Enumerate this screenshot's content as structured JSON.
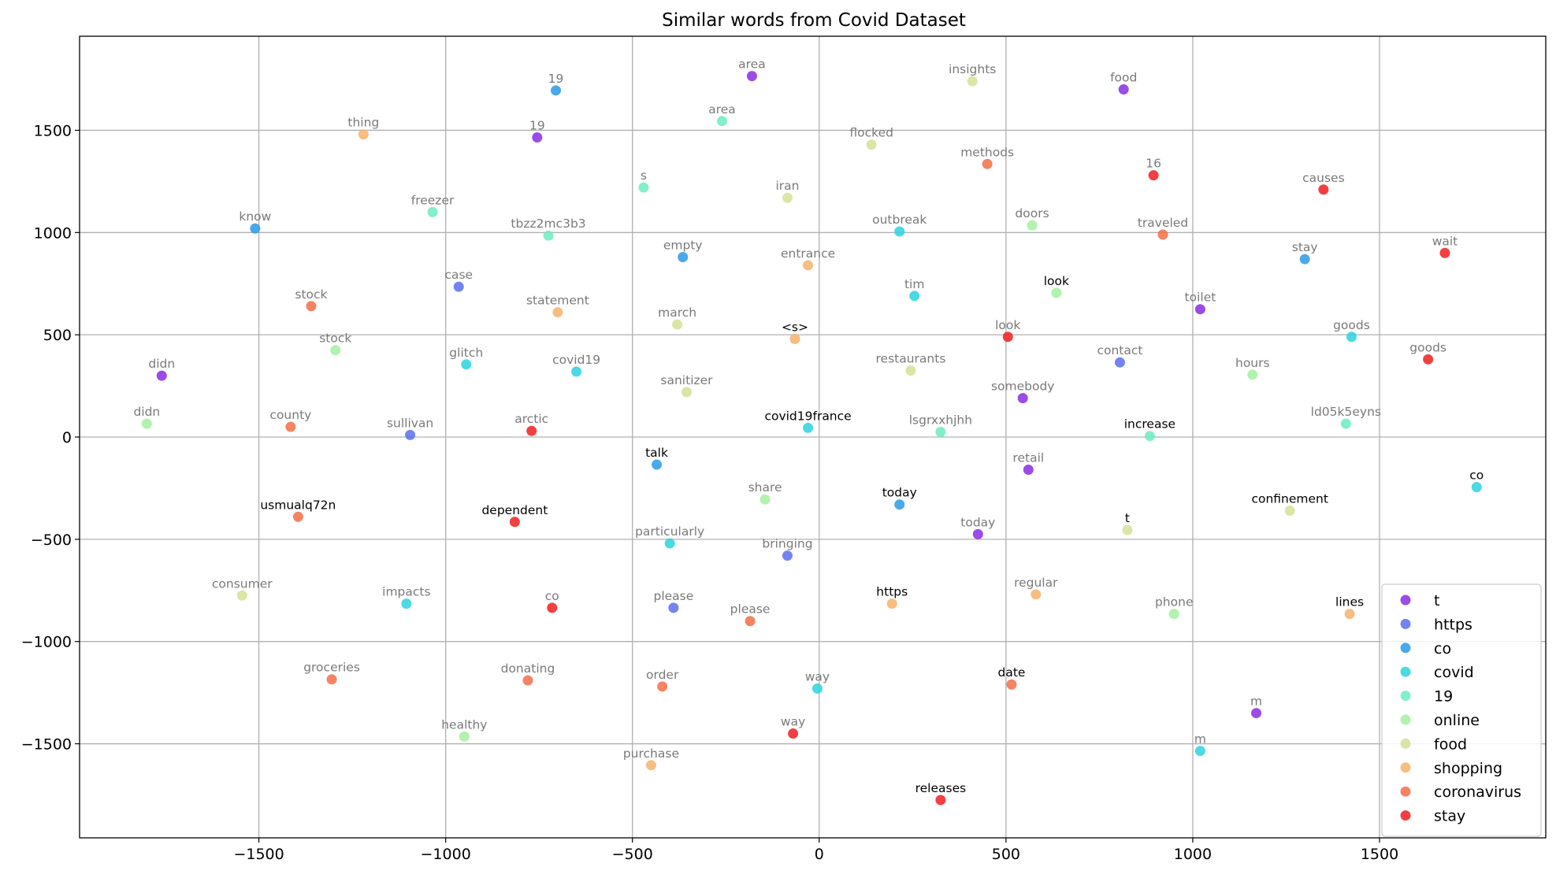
{
  "chart_data": {
    "type": "scatter",
    "title": "Similar words from Covid Dataset",
    "xlabel": "",
    "ylabel": "",
    "xlim": [
      -1980,
      1945
    ],
    "ylim": [
      -1960,
      1960
    ],
    "x_ticks": [
      -1500,
      -1000,
      -500,
      0,
      500,
      1000,
      1500
    ],
    "y_ticks": [
      -1500,
      -1000,
      -500,
      0,
      500,
      1000,
      1500
    ],
    "grid": true,
    "legend_position": "lower-right",
    "series": [
      {
        "name": "t",
        "color": "#8a2be2",
        "points": [
          {
            "x": -1760,
            "y": 300,
            "label": "didn",
            "dark": false
          },
          {
            "x": -755,
            "y": 1465,
            "label": "19",
            "dark": false
          },
          {
            "x": -180,
            "y": 1765,
            "label": "area",
            "dark": false
          },
          {
            "x": 815,
            "y": 1700,
            "label": "food",
            "dark": false
          },
          {
            "x": 1020,
            "y": 625,
            "label": "toilet",
            "dark": false
          },
          {
            "x": 545,
            "y": 190,
            "label": "somebody",
            "dark": false
          },
          {
            "x": 560,
            "y": -160,
            "label": "retail",
            "dark": false
          },
          {
            "x": 425,
            "y": -475,
            "label": "today",
            "dark": false
          },
          {
            "x": 1170,
            "y": -1350,
            "label": "m",
            "dark": false
          }
        ]
      },
      {
        "name": "https",
        "color": "#5a6ef0",
        "points": [
          {
            "x": -965,
            "y": 735,
            "label": "case",
            "dark": false
          },
          {
            "x": -1095,
            "y": 10,
            "label": "sullivan",
            "dark": false
          },
          {
            "x": -85,
            "y": -580,
            "label": "bringing",
            "dark": false
          },
          {
            "x": -390,
            "y": -835,
            "label": "please",
            "dark": false
          },
          {
            "x": 805,
            "y": 365,
            "label": "contact",
            "dark": false
          }
        ]
      },
      {
        "name": "co",
        "color": "#2a9ae6",
        "points": [
          {
            "x": -1510,
            "y": 1020,
            "label": "know",
            "dark": false
          },
          {
            "x": -705,
            "y": 1695,
            "label": "19",
            "dark": false
          },
          {
            "x": -365,
            "y": 880,
            "label": "empty",
            "dark": false
          },
          {
            "x": 1300,
            "y": 870,
            "label": "stay",
            "dark": false
          },
          {
            "x": -435,
            "y": -135,
            "label": "talk",
            "dark": true
          },
          {
            "x": 215,
            "y": -330,
            "label": "today",
            "dark": true
          }
        ]
      },
      {
        "name": "covid",
        "color": "#2ad4de",
        "points": [
          {
            "x": -945,
            "y": 355,
            "label": "glitch",
            "dark": false
          },
          {
            "x": -650,
            "y": 320,
            "label": "covid19",
            "dark": false
          },
          {
            "x": 215,
            "y": 1005,
            "label": "outbreak",
            "dark": false
          },
          {
            "x": 255,
            "y": 690,
            "label": "tim",
            "dark": false
          },
          {
            "x": -30,
            "y": 45,
            "label": "covid19france",
            "dark": true
          },
          {
            "x": 1425,
            "y": 490,
            "label": "goods",
            "dark": false
          },
          {
            "x": 1760,
            "y": -245,
            "label": "co",
            "dark": true
          },
          {
            "x": -1105,
            "y": -815,
            "label": "impacts",
            "dark": false
          },
          {
            "x": -400,
            "y": -520,
            "label": "particularly",
            "dark": false
          },
          {
            "x": -5,
            "y": -1230,
            "label": "way",
            "dark": false
          },
          {
            "x": 1020,
            "y": -1535,
            "label": "m",
            "dark": false
          }
        ]
      },
      {
        "name": "19",
        "color": "#6cecc0",
        "points": [
          {
            "x": -1035,
            "y": 1100,
            "label": "freezer",
            "dark": false
          },
          {
            "x": -725,
            "y": 985,
            "label": "tbzz2mc3b3",
            "dark": false
          },
          {
            "x": -470,
            "y": 1220,
            "label": "s",
            "dark": false
          },
          {
            "x": -260,
            "y": 1545,
            "label": "area",
            "dark": false
          },
          {
            "x": 325,
            "y": 25,
            "label": "lsgrxxhjhh",
            "dark": false
          },
          {
            "x": 885,
            "y": 5,
            "label": "increase",
            "dark": true
          },
          {
            "x": 1410,
            "y": 65,
            "label": "ld05k5eyns",
            "dark": false
          }
        ]
      },
      {
        "name": "online",
        "color": "#a2f0a0",
        "points": [
          {
            "x": -1800,
            "y": 65,
            "label": "didn",
            "dark": false
          },
          {
            "x": -1295,
            "y": 425,
            "label": "stock",
            "dark": false
          },
          {
            "x": 570,
            "y": 1035,
            "label": "doors",
            "dark": false
          },
          {
            "x": 635,
            "y": 705,
            "label": "look",
            "dark": true
          },
          {
            "x": 1160,
            "y": 305,
            "label": "hours",
            "dark": false
          },
          {
            "x": -145,
            "y": -305,
            "label": "share",
            "dark": false
          },
          {
            "x": 950,
            "y": -865,
            "label": "phone",
            "dark": false
          },
          {
            "x": -950,
            "y": -1465,
            "label": "healthy",
            "dark": false
          }
        ]
      },
      {
        "name": "food",
        "color": "#d4e096",
        "points": [
          {
            "x": 410,
            "y": 1740,
            "label": "insights",
            "dark": false
          },
          {
            "x": 140,
            "y": 1430,
            "label": "flocked",
            "dark": false
          },
          {
            "x": -85,
            "y": 1170,
            "label": "iran",
            "dark": false
          },
          {
            "x": -380,
            "y": 550,
            "label": "march",
            "dark": false
          },
          {
            "x": -355,
            "y": 220,
            "label": "sanitizer",
            "dark": false
          },
          {
            "x": 245,
            "y": 325,
            "label": "restaurants",
            "dark": false
          },
          {
            "x": 825,
            "y": -455,
            "label": "t",
            "dark": true
          },
          {
            "x": 1260,
            "y": -360,
            "label": "confinement",
            "dark": true
          },
          {
            "x": -1545,
            "y": -775,
            "label": "consumer",
            "dark": false
          }
        ]
      },
      {
        "name": "shopping",
        "color": "#f6b26b",
        "points": [
          {
            "x": -1220,
            "y": 1480,
            "label": "thing",
            "dark": false
          },
          {
            "x": -30,
            "y": 840,
            "label": "entrance",
            "dark": false
          },
          {
            "x": -700,
            "y": 610,
            "label": "statement",
            "dark": false
          },
          {
            "x": -65,
            "y": 480,
            "label": "<s>",
            "dark": true
          },
          {
            "x": 195,
            "y": -815,
            "label": "https",
            "dark": true
          },
          {
            "x": 580,
            "y": -770,
            "label": "regular",
            "dark": false
          },
          {
            "x": 1420,
            "y": -865,
            "label": "lines",
            "dark": true
          },
          {
            "x": -450,
            "y": -1605,
            "label": "purchase",
            "dark": false
          }
        ]
      },
      {
        "name": "coronavirus",
        "color": "#f26e47",
        "points": [
          {
            "x": 450,
            "y": 1335,
            "label": "methods",
            "dark": false
          },
          {
            "x": 920,
            "y": 990,
            "label": "traveled",
            "dark": false
          },
          {
            "x": -1360,
            "y": 640,
            "label": "stock",
            "dark": false
          },
          {
            "x": -1415,
            "y": 50,
            "label": "county",
            "dark": false
          },
          {
            "x": -1395,
            "y": -390,
            "label": "usmualq72n",
            "dark": true
          },
          {
            "x": -185,
            "y": -900,
            "label": "please",
            "dark": false
          },
          {
            "x": -1305,
            "y": -1185,
            "label": "groceries",
            "dark": false
          },
          {
            "x": -780,
            "y": -1190,
            "label": "donating",
            "dark": false
          },
          {
            "x": -420,
            "y": -1220,
            "label": "order",
            "dark": false
          },
          {
            "x": 515,
            "y": -1210,
            "label": "date",
            "dark": true
          }
        ]
      },
      {
        "name": "stay",
        "color": "#f01e1e",
        "points": [
          {
            "x": 895,
            "y": 1280,
            "label": "16",
            "dark": false
          },
          {
            "x": 1350,
            "y": 1210,
            "label": "causes",
            "dark": false
          },
          {
            "x": 1675,
            "y": 900,
            "label": "wait",
            "dark": false
          },
          {
            "x": 505,
            "y": 490,
            "label": "look",
            "dark": false
          },
          {
            "x": 1630,
            "y": 380,
            "label": "goods",
            "dark": false
          },
          {
            "x": -770,
            "y": 30,
            "label": "arctic",
            "dark": false
          },
          {
            "x": -815,
            "y": -415,
            "label": "dependent",
            "dark": true
          },
          {
            "x": -715,
            "y": -835,
            "label": "co",
            "dark": false
          },
          {
            "x": -70,
            "y": -1450,
            "label": "way",
            "dark": false
          },
          {
            "x": 325,
            "y": -1775,
            "label": "releases",
            "dark": true
          }
        ]
      }
    ]
  }
}
